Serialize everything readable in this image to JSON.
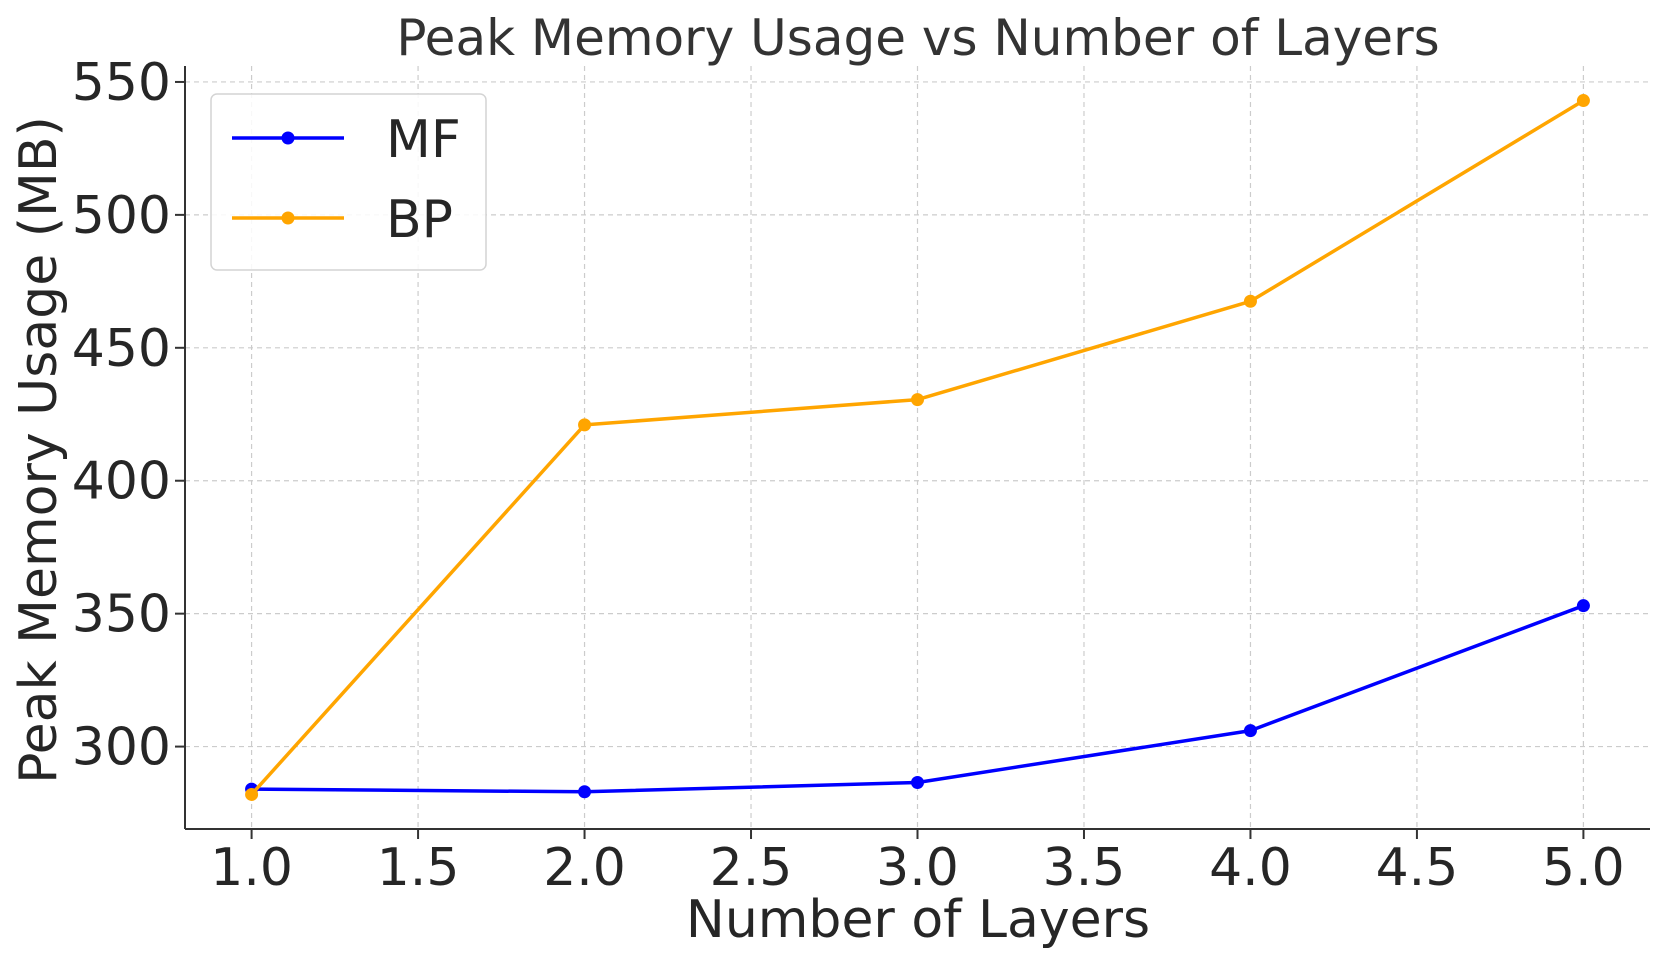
{
  "chart_data": {
    "type": "line",
    "title": "Peak Memory Usage vs Number of Layers",
    "xlabel": "Number of Layers",
    "ylabel": "Peak Memory Usage (MB)",
    "x": [
      1.0,
      2.0,
      3.0,
      4.0,
      5.0
    ],
    "xlim": [
      0.8,
      5.2
    ],
    "ylim": [
      269,
      556
    ],
    "xticks": [
      1.0,
      1.5,
      2.0,
      2.5,
      3.0,
      3.5,
      4.0,
      4.5,
      5.0
    ],
    "xtick_labels": [
      "1.0",
      "1.5",
      "2.0",
      "2.5",
      "3.0",
      "3.5",
      "4.0",
      "4.5",
      "5.0"
    ],
    "yticks": [
      300,
      350,
      400,
      450,
      500,
      550
    ],
    "ytick_labels": [
      "300",
      "350",
      "400",
      "450",
      "500",
      "550"
    ],
    "grid": true,
    "legend_position": "top-left",
    "series": [
      {
        "name": "MF",
        "color": "#0000ff",
        "values": [
          284,
          283,
          286.5,
          306,
          353
        ]
      },
      {
        "name": "BP",
        "color": "#ffa500",
        "values": [
          282,
          421,
          430.5,
          467.5,
          543
        ]
      }
    ]
  }
}
